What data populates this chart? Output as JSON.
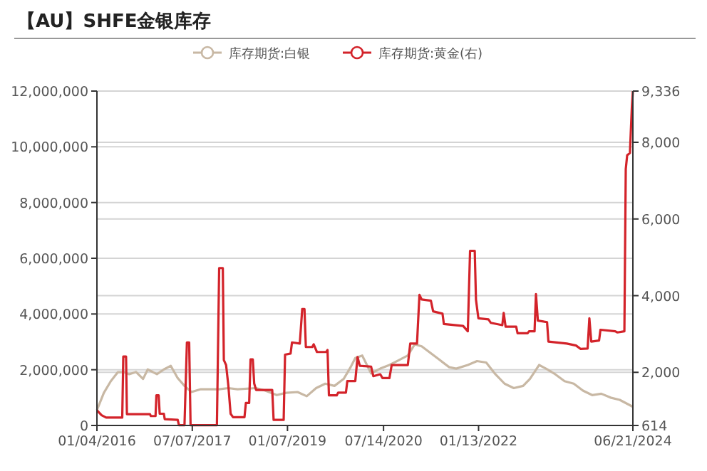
{
  "chart_data": {
    "type": "line",
    "title": "【AU】SHFE金银库存",
    "legend": "top",
    "grid": "y",
    "xlim": [
      "2016-01-04",
      "2024-06-21"
    ],
    "xticks": [
      {
        "value": "2016-01-04",
        "label": "01/04/2016"
      },
      {
        "value": "2017-07-07",
        "label": "07/07/2017"
      },
      {
        "value": "2019-01-07",
        "label": "01/07/2019"
      },
      {
        "value": "2020-07-14",
        "label": "07/14/2020"
      },
      {
        "value": "2022-01-13",
        "label": "01/13/2022"
      },
      {
        "value": "2024-06-21",
        "label": "06/21/2024"
      }
    ],
    "ylim": [
      0,
      12000000
    ],
    "yticks": [
      0,
      {
        "value": 2000000,
        "label": "2,000,000"
      },
      {
        "value": 4000000,
        "label": "4,000,000"
      },
      {
        "value": 6000000,
        "label": "6,000,000"
      },
      {
        "value": 8000000,
        "label": "8,000,000"
      },
      {
        "value": 10000000,
        "label": "10,000,000"
      },
      {
        "value": 12000000,
        "label": "12,000,000"
      }
    ],
    "y2lim": [
      614,
      9336
    ],
    "y2ticks": [
      614,
      {
        "value": 2000,
        "label": "2,000"
      },
      {
        "value": 4000,
        "label": "4,000"
      },
      {
        "value": 6000,
        "label": "6,000"
      },
      {
        "value": 8000,
        "label": "8,000"
      },
      {
        "value": 9336,
        "label": "9,336"
      }
    ],
    "series": [
      {
        "name": "库存期货:白银",
        "color": "#c8b8a4",
        "x": [
          "2016-01-04",
          "2016-02-13",
          "2016-03-24",
          "2016-05-03",
          "2016-06-12",
          "2016-07-08",
          "2016-08-17",
          "2016-09-26",
          "2016-10-23",
          "2016-12-15",
          "2017-01-24",
          "2017-03-05",
          "2017-04-14",
          "2017-05-23",
          "2017-07-02",
          "2017-08-25",
          "2017-12-09",
          "2018-01-31",
          "2018-03-25",
          "2018-07-10",
          "2018-09-01",
          "2018-11-06",
          "2018-12-30",
          "2019-03-06",
          "2019-04-28",
          "2019-06-21",
          "2019-08-13",
          "2019-10-05",
          "2019-11-27",
          "2020-01-06",
          "2020-02-02",
          "2020-03-13",
          "2020-05-03",
          "2020-06-25",
          "2020-08-17",
          "2020-10-09",
          "2020-12-01",
          "2021-01-10",
          "2021-02-19",
          "2021-04-13",
          "2021-06-05",
          "2021-07-28",
          "2021-09-06",
          "2021-11-12",
          "2022-01-04",
          "2022-02-26",
          "2022-04-20",
          "2022-06-12",
          "2022-08-04",
          "2022-09-27",
          "2022-11-05",
          "2022-12-28",
          "2023-02-06",
          "2023-03-31",
          "2023-05-24",
          "2023-07-16",
          "2023-09-07",
          "2023-10-30",
          "2023-12-22",
          "2024-02-13",
          "2024-04-06",
          "2024-06-21"
        ],
        "values": [
          550000,
          1170000,
          1590000,
          1910000,
          1910000,
          1840000,
          1920000,
          1670000,
          2010000,
          1840000,
          2010000,
          2140000,
          1700000,
          1420000,
          1200000,
          1300000,
          1300000,
          1340000,
          1300000,
          1340000,
          1250000,
          1090000,
          1170000,
          1200000,
          1050000,
          1340000,
          1500000,
          1420000,
          1670000,
          2090000,
          2420000,
          2510000,
          1870000,
          2040000,
          2170000,
          2340000,
          2510000,
          2910000,
          2840000,
          2590000,
          2340000,
          2090000,
          2040000,
          2170000,
          2310000,
          2260000,
          1840000,
          1500000,
          1340000,
          1420000,
          1670000,
          2170000,
          2040000,
          1840000,
          1590000,
          1500000,
          1250000,
          1090000,
          1140000,
          1000000,
          920000,
          670000
        ]
      },
      {
        "name": "库存期货:黄金(右)",
        "color": "#d3232a",
        "axis": "y2",
        "x": [
          "2016-01-04",
          "2016-01-31",
          "2016-02-26",
          "2016-05-29",
          "2016-06-04",
          "2016-06-20",
          "2016-06-25",
          "2016-11-05",
          "2016-11-10",
          "2016-12-07",
          "2016-12-12",
          "2016-12-25",
          "2016-12-31",
          "2017-01-24",
          "2017-01-29",
          "2017-04-14",
          "2017-04-21",
          "2017-05-23",
          "2017-06-06",
          "2017-06-19",
          "2017-06-27",
          "2017-11-26",
          "2017-12-09",
          "2017-12-30",
          "2018-01-05",
          "2018-01-18",
          "2018-01-31",
          "2018-02-13",
          "2018-02-27",
          "2018-05-04",
          "2018-05-12",
          "2018-05-31",
          "2018-06-08",
          "2018-06-21",
          "2018-06-29",
          "2018-07-10",
          "2018-10-11",
          "2018-10-19",
          "2018-12-16",
          "2018-12-24",
          "2019-01-25",
          "2019-02-02",
          "2019-03-19",
          "2019-04-02",
          "2019-04-15",
          "2019-04-23",
          "2019-05-30",
          "2019-06-07",
          "2019-06-26",
          "2019-08-18",
          "2019-08-26",
          "2019-09-03",
          "2019-10-18",
          "2019-10-26",
          "2019-12-10",
          "2019-12-18",
          "2020-02-02",
          "2020-02-15",
          "2020-02-28",
          "2020-05-03",
          "2020-05-16",
          "2020-06-25",
          "2020-07-08",
          "2020-08-17",
          "2020-08-30",
          "2020-12-01",
          "2020-12-15",
          "2021-01-23",
          "2021-02-06",
          "2021-02-19",
          "2021-04-13",
          "2021-04-26",
          "2021-06-19",
          "2021-06-27",
          "2021-10-16",
          "2021-11-12",
          "2021-11-25",
          "2021-12-22",
          "2021-12-29",
          "2022-01-12",
          "2022-03-11",
          "2022-03-25",
          "2022-05-30",
          "2022-06-07",
          "2022-06-18",
          "2022-08-18",
          "2022-08-26",
          "2022-10-23",
          "2022-10-31",
          "2022-12-02",
          "2022-12-10",
          "2022-12-21",
          "2023-02-12",
          "2023-02-20",
          "2023-06-06",
          "2023-07-29",
          "2023-08-25",
          "2023-10-04",
          "2023-10-14",
          "2023-10-25",
          "2023-12-09",
          "2023-12-17",
          "2024-03-11",
          "2024-03-24",
          "2024-05-03",
          "2024-05-11",
          "2024-05-19",
          "2024-06-04",
          "2024-06-09",
          "2024-06-15",
          "2024-06-21"
        ],
        "values": [
          1010,
          880,
          820,
          820,
          2410,
          2410,
          910,
          910,
          860,
          860,
          1400,
          1400,
          920,
          920,
          780,
          760,
          620,
          620,
          2780,
          2780,
          620,
          620,
          4720,
          4720,
          2320,
          2190,
          1650,
          920,
          830,
          830,
          1200,
          1200,
          2340,
          2340,
          1710,
          1540,
          1540,
          760,
          760,
          2460,
          2490,
          2780,
          2750,
          3650,
          3650,
          2660,
          2660,
          2730,
          2530,
          2530,
          2580,
          1400,
          1400,
          1470,
          1470,
          1770,
          1770,
          2400,
          2170,
          2150,
          1900,
          1950,
          1850,
          1850,
          2190,
          2190,
          2750,
          2750,
          4020,
          3900,
          3870,
          3590,
          3530,
          3260,
          3210,
          3070,
          5170,
          5170,
          3900,
          3410,
          3380,
          3290,
          3230,
          3550,
          3190,
          3190,
          3020,
          3020,
          3070,
          3070,
          4040,
          3350,
          3310,
          2800,
          2750,
          2700,
          2610,
          2620,
          3410,
          2800,
          2830,
          3110,
          3070,
          3040,
          3070,
          7300,
          7660,
          7720,
          8270,
          8900,
          9336
        ]
      }
    ]
  }
}
